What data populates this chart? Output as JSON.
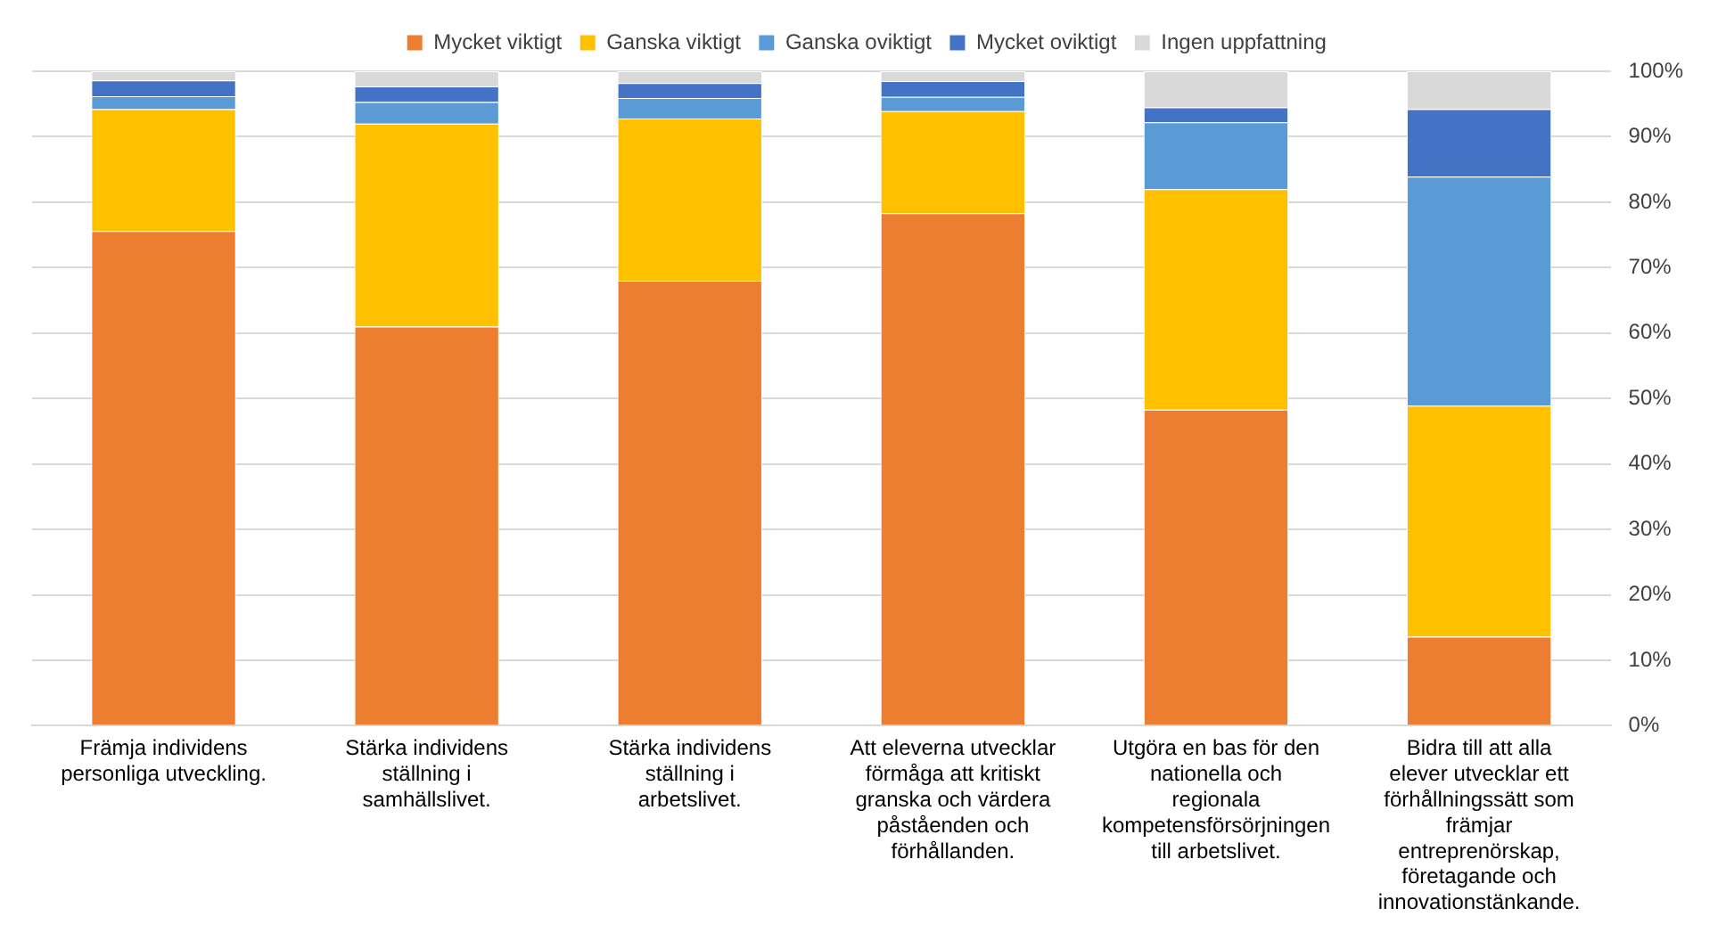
{
  "chart_data": {
    "type": "bar",
    "stacked": true,
    "categories": [
      "Främja individens personliga utveckling.",
      "Stärka individens ställning i samhällslivet.",
      "Stärka individens ställning i arbetslivet.",
      "Att eleverna utvecklar förmåga att kritiskt granska och värdera påståenden och förhållanden.",
      "Utgöra en bas för den nationella och regionala kompetensförsörjningen till arbetslivet.",
      "Bidra till att alla elever utvecklar ett förhållningssätt som främjar entreprenörskap, företagande och innovationstänkande."
    ],
    "series": [
      {
        "name": "Mycket viktigt",
        "color": "#ed7d31",
        "values": [
          75.6,
          61.0,
          68.0,
          78.3,
          48.3,
          13.6
        ]
      },
      {
        "name": "Ganska viktigt",
        "color": "#ffc000",
        "values": [
          18.6,
          31.0,
          24.8,
          15.6,
          33.7,
          35.3
        ]
      },
      {
        "name": "Ganska oviktigt",
        "color": "#5b9bd5",
        "values": [
          2.0,
          3.3,
          3.1,
          2.2,
          10.2,
          35.0
        ]
      },
      {
        "name": "Mycket oviktigt",
        "color": "#4472c4",
        "values": [
          2.4,
          2.4,
          2.3,
          2.4,
          2.3,
          10.3
        ]
      },
      {
        "name": "Ingen uppfattning",
        "color": "#d9d9d9",
        "values": [
          1.4,
          2.3,
          1.8,
          1.5,
          5.5,
          5.8
        ]
      }
    ],
    "ylim": [
      0,
      100
    ],
    "yticks": [
      {
        "value": 0,
        "label": "0%"
      },
      {
        "value": 10,
        "label": "10%"
      },
      {
        "value": 20,
        "label": "20%"
      },
      {
        "value": 30,
        "label": "30%"
      },
      {
        "value": 40,
        "label": "40%"
      },
      {
        "value": 50,
        "label": "50%"
      },
      {
        "value": 60,
        "label": "60%"
      },
      {
        "value": 70,
        "label": "70%"
      },
      {
        "value": 80,
        "label": "80%"
      },
      {
        "value": 90,
        "label": "90%"
      },
      {
        "value": 100,
        "label": "100%"
      }
    ],
    "grid": "y",
    "legend": "top"
  }
}
